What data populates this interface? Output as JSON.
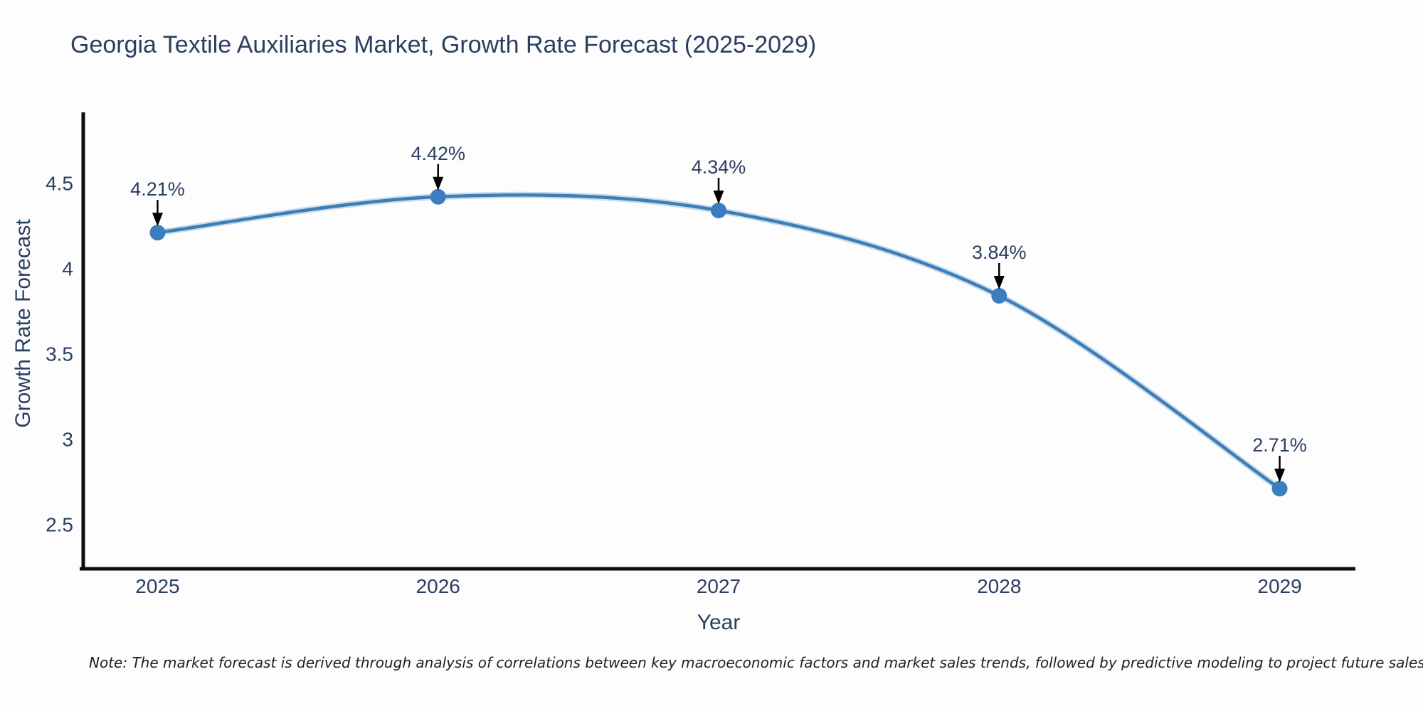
{
  "chart_data": {
    "type": "line",
    "title": "Georgia Textile Auxiliaries Market, Growth Rate Forecast (2025-2029)",
    "xlabel": "Year",
    "ylabel": "Growth Rate Forecast",
    "x": [
      2025,
      2026,
      2027,
      2028,
      2029
    ],
    "x_tick_labels": [
      "2025",
      "2026",
      "2027",
      "2028",
      "2029"
    ],
    "series": [
      {
        "name": "Growth Rate Forecast",
        "values": [
          4.21,
          4.42,
          4.34,
          3.84,
          2.71
        ]
      }
    ],
    "point_labels": [
      "4.21%",
      "4.42%",
      "4.34%",
      "3.84%",
      "2.71%"
    ],
    "y_ticks": [
      4.5,
      4,
      3.5,
      3,
      2.5
    ],
    "y_tick_labels": [
      "4.5",
      "4",
      "3.5",
      "3",
      "2.5"
    ],
    "xlim": [
      2024.73,
      2029.27
    ],
    "ylim": [
      2.24,
      4.915
    ],
    "grid": false,
    "legend": "none",
    "line_color": "#3f7db5",
    "line_halo_color": "rgba(151,193,229,0.55)",
    "marker_color": "#3a7ebf",
    "axis_color": "#0d0d0d",
    "text_color": "#2a3f5f",
    "arrow_color": "#000000"
  },
  "note": {
    "text": "Note: The market forecast is derived through analysis of correlations between key macroeconomic factors and market sales trends, followed by predictive modeling to project future sales"
  }
}
